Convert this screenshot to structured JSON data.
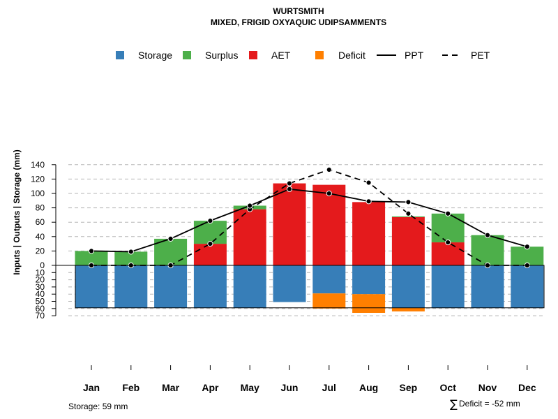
{
  "chart_data": {
    "type": "bar",
    "title": "WURTSMITH",
    "subtitle": "MIXED, FRIGID OXYAQUIC UDIPSAMMENTS",
    "ylabel": "Inputs | Outputs | Storage     (mm)",
    "categories": [
      "Jan",
      "Feb",
      "Mar",
      "Apr",
      "May",
      "Jun",
      "Jul",
      "Aug",
      "Sep",
      "Oct",
      "Nov",
      "Dec"
    ],
    "upper_ylim": [
      0,
      140
    ],
    "upper_ticks": [
      "0",
      "20",
      "40",
      "60",
      "80",
      "100",
      "120",
      "140"
    ],
    "lower_ylim": [
      0,
      70
    ],
    "lower_ticks": [
      "10",
      "20",
      "30",
      "40",
      "50",
      "60",
      "70"
    ],
    "series": [
      {
        "name": "Storage",
        "color": "#377EB8",
        "values": [
          59,
          59,
          59,
          59,
          59,
          51,
          39,
          40,
          59,
          59,
          59,
          59
        ]
      },
      {
        "name": "Surplus",
        "color": "#4DAF4A",
        "values": [
          20,
          19,
          37,
          32,
          5,
          0,
          0,
          0,
          1,
          40,
          42,
          26
        ]
      },
      {
        "name": "AET",
        "color": "#E41A1C",
        "values": [
          0,
          0,
          0,
          30,
          78,
          114,
          112,
          88,
          67,
          32,
          0,
          0
        ]
      },
      {
        "name": "Deficit",
        "color": "#FF7F00",
        "values": [
          0,
          0,
          0,
          0,
          0,
          0,
          21,
          26,
          5,
          0,
          0,
          0
        ]
      },
      {
        "name": "PPT",
        "style": "solid",
        "values": [
          20,
          19,
          37,
          62,
          83,
          106,
          100,
          89,
          88,
          72,
          42,
          26
        ]
      },
      {
        "name": "PET",
        "style": "dashed",
        "values": [
          0,
          0,
          0,
          30,
          78,
          114,
          133,
          115,
          72,
          32,
          0,
          0
        ]
      }
    ],
    "storage_capacity": 59,
    "storage_note": "Storage: 59 mm",
    "deficit_note": "Deficit = -52 mm",
    "sigma_symbol": "∑",
    "legend_position": "top"
  }
}
